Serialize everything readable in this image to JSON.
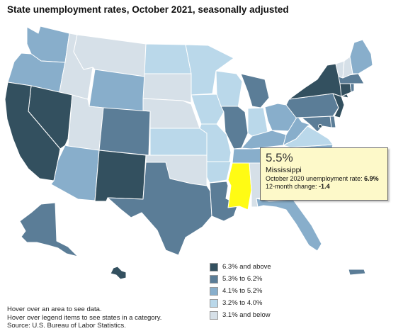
{
  "title": "State unemployment rates, October 2021, seasonally adjusted",
  "colors": {
    "cat1": "#33505f",
    "cat2": "#5b7d97",
    "cat3": "#88aecb",
    "cat4": "#bad8ea",
    "cat5": "#d6e0e8",
    "highlight": "#fffb14",
    "border": "#ffffff"
  },
  "legend": [
    {
      "label": "6.3% and above",
      "category": "cat1"
    },
    {
      "label": "5.3% to 6.2%",
      "category": "cat2"
    },
    {
      "label": "4.1% to 5.2%",
      "category": "cat3"
    },
    {
      "label": "3.2% to 4.0%",
      "category": "cat4"
    },
    {
      "label": "3.1% and below",
      "category": "cat5"
    }
  ],
  "tooltip": {
    "rate": "5.5%",
    "state": "Mississippi",
    "line1_label": "October 2020 unemployment rate: ",
    "line1_value": "6.9%",
    "line2_label": "12-month change: ",
    "line2_value": "-1.4"
  },
  "notes": [
    "Hover over an area to see data.",
    "Hover over legend items to see states in a category.",
    "Source: U.S. Bureau of Labor Statistics."
  ],
  "states": [
    {
      "id": "WA",
      "category": "cat3"
    },
    {
      "id": "OR",
      "category": "cat3"
    },
    {
      "id": "CA",
      "category": "cat1"
    },
    {
      "id": "NV",
      "category": "cat1"
    },
    {
      "id": "ID",
      "category": "cat5"
    },
    {
      "id": "MT",
      "category": "cat5"
    },
    {
      "id": "WY",
      "category": "cat3"
    },
    {
      "id": "UT",
      "category": "cat5"
    },
    {
      "id": "AZ",
      "category": "cat3"
    },
    {
      "id": "CO",
      "category": "cat2"
    },
    {
      "id": "NM",
      "category": "cat1"
    },
    {
      "id": "ND",
      "category": "cat4"
    },
    {
      "id": "SD",
      "category": "cat5"
    },
    {
      "id": "NE",
      "category": "cat5"
    },
    {
      "id": "KS",
      "category": "cat4"
    },
    {
      "id": "OK",
      "category": "cat5"
    },
    {
      "id": "TX",
      "category": "cat2"
    },
    {
      "id": "MN",
      "category": "cat4"
    },
    {
      "id": "IA",
      "category": "cat4"
    },
    {
      "id": "MO",
      "category": "cat4"
    },
    {
      "id": "AR",
      "category": "cat4"
    },
    {
      "id": "LA",
      "category": "cat2"
    },
    {
      "id": "WI",
      "category": "cat4"
    },
    {
      "id": "IL",
      "category": "cat2"
    },
    {
      "id": "MI",
      "category": "cat2"
    },
    {
      "id": "IN",
      "category": "cat4"
    },
    {
      "id": "OH",
      "category": "cat3"
    },
    {
      "id": "KY",
      "category": "cat3"
    },
    {
      "id": "TN",
      "category": "cat3"
    },
    {
      "id": "MS",
      "category": "highlight"
    },
    {
      "id": "AL",
      "category": "cat5"
    },
    {
      "id": "GA",
      "category": "cat5"
    },
    {
      "id": "FL",
      "category": "cat3"
    },
    {
      "id": "SC",
      "category": "cat3"
    },
    {
      "id": "NC",
      "category": "cat3"
    },
    {
      "id": "VA",
      "category": "cat4"
    },
    {
      "id": "WV",
      "category": "cat3"
    },
    {
      "id": "PA",
      "category": "cat2"
    },
    {
      "id": "NY",
      "category": "cat1"
    },
    {
      "id": "VT",
      "category": "cat5"
    },
    {
      "id": "NH",
      "category": "cat5"
    },
    {
      "id": "ME",
      "category": "cat3"
    },
    {
      "id": "MA",
      "category": "cat2"
    },
    {
      "id": "CT",
      "category": "cat1"
    },
    {
      "id": "RI",
      "category": "cat2"
    },
    {
      "id": "NJ",
      "category": "cat1"
    },
    {
      "id": "DE",
      "category": "cat2"
    },
    {
      "id": "MD",
      "category": "cat2"
    },
    {
      "id": "DC",
      "category": "cat1"
    },
    {
      "id": "AK",
      "category": "cat2"
    },
    {
      "id": "HI",
      "category": "cat1"
    },
    {
      "id": "PR",
      "category": "cat2"
    }
  ]
}
